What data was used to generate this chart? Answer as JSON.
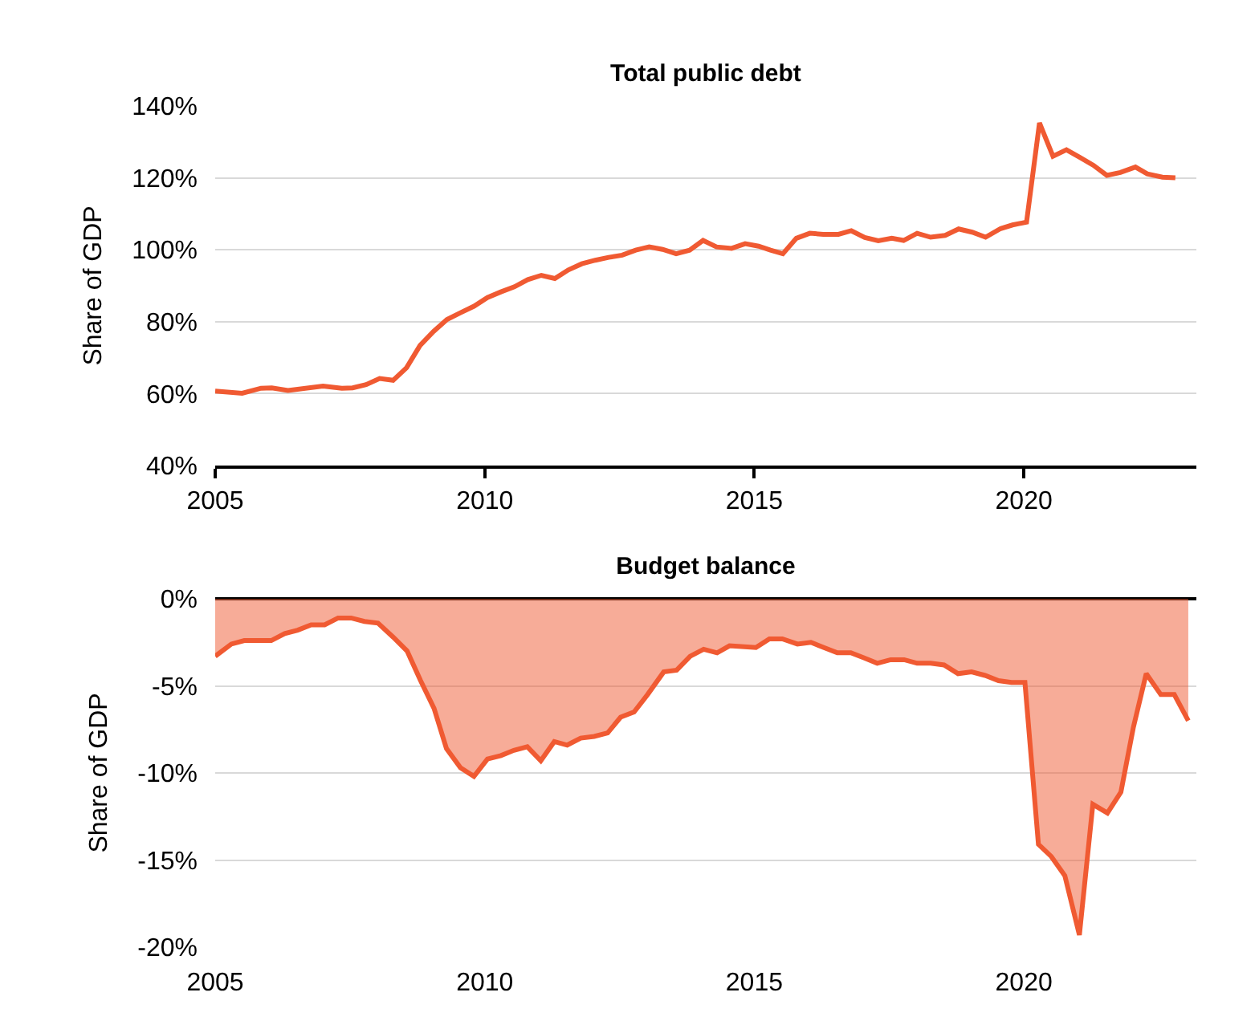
{
  "chart_data": [
    {
      "type": "line",
      "title": "Total public debt",
      "ylabel": "Share of GDP",
      "x": [
        2005.0,
        2005.5,
        2005.85,
        2006.05,
        2006.35,
        2007.0,
        2007.35,
        2007.55,
        2007.8,
        2008.05,
        2008.3,
        2008.55,
        2008.8,
        2009.05,
        2009.3,
        2009.55,
        2009.8,
        2010.05,
        2010.3,
        2010.55,
        2010.8,
        2011.05,
        2011.3,
        2011.55,
        2011.8,
        2012.05,
        2012.3,
        2012.55,
        2012.8,
        2013.05,
        2013.3,
        2013.55,
        2013.8,
        2014.05,
        2014.3,
        2014.58,
        2014.83,
        2015.08,
        2015.3,
        2015.53,
        2015.78,
        2016.03,
        2016.28,
        2016.56,
        2016.8,
        2017.05,
        2017.3,
        2017.55,
        2017.77,
        2018.02,
        2018.27,
        2018.54,
        2018.79,
        2019.04,
        2019.29,
        2019.57,
        2019.79,
        2020.05,
        2020.29,
        2020.54,
        2020.79,
        2021.04,
        2021.29,
        2021.54,
        2021.79,
        2022.07,
        2022.29,
        2022.57,
        2022.81
      ],
      "series": [
        {
          "color": "#f05a32",
          "values": [
            60.7,
            60.1,
            61.5,
            61.6,
            60.9,
            62.1,
            61.5,
            61.6,
            62.5,
            64.2,
            63.7,
            67.2,
            73.4,
            77.3,
            80.6,
            82.5,
            84.3,
            86.7,
            88.3,
            89.7,
            91.7,
            92.9,
            92.0,
            94.4,
            96.1,
            97.1,
            97.9,
            98.5,
            99.9,
            100.8,
            100.1,
            98.9,
            99.9,
            102.6,
            100.8,
            100.4,
            101.7,
            101.0,
            99.9,
            98.9,
            103.2,
            104.6,
            104.3,
            104.3,
            105.3,
            103.4,
            102.5,
            103.2,
            102.6,
            104.6,
            103.5,
            104.0,
            105.8,
            104.9,
            103.5,
            105.9,
            106.9,
            107.7,
            135.3,
            126.0,
            127.8,
            125.7,
            123.5,
            120.7,
            121.5,
            123.0,
            121.1,
            120.2,
            120.0
          ]
        }
      ],
      "xlim": [
        2005,
        2023.2
      ],
      "ylim": [
        40,
        140
      ],
      "xticks": [
        2005,
        2010,
        2015,
        2020
      ],
      "yticks": [
        {
          "value": 40,
          "label": "40%"
        },
        {
          "value": 60,
          "label": "60%"
        },
        {
          "value": 80,
          "label": "80%"
        },
        {
          "value": 100,
          "label": "100%"
        },
        {
          "value": 120,
          "label": "120%"
        },
        {
          "value": 140,
          "label": "140%"
        }
      ],
      "grid": "y"
    },
    {
      "type": "area",
      "title": "Budget balance",
      "ylabel": "Share of GDP",
      "x": [
        2005.0,
        2005.3,
        2005.54,
        2006.04,
        2006.29,
        2006.53,
        2006.78,
        2007.03,
        2007.28,
        2007.52,
        2007.77,
        2008.02,
        2008.3,
        2008.56,
        2008.81,
        2009.06,
        2009.29,
        2009.55,
        2009.8,
        2010.05,
        2010.3,
        2010.54,
        2010.79,
        2011.04,
        2011.29,
        2011.53,
        2011.78,
        2012.03,
        2012.28,
        2012.52,
        2012.77,
        2013.02,
        2013.32,
        2013.56,
        2013.81,
        2014.06,
        2014.31,
        2014.54,
        2015.03,
        2015.28,
        2015.52,
        2015.8,
        2016.05,
        2016.29,
        2016.54,
        2016.79,
        2017.04,
        2017.28,
        2017.53,
        2017.78,
        2018.02,
        2018.27,
        2018.52,
        2018.78,
        2019.03,
        2019.28,
        2019.53,
        2019.77,
        2020.02,
        2020.27,
        2020.51,
        2020.76,
        2021.03,
        2021.28,
        2021.55,
        2021.8,
        2022.03,
        2022.27,
        2022.54,
        2022.79,
        2023.05
      ],
      "series": [
        {
          "color": "#f05a32",
          "values": [
            -3.3,
            -2.6,
            -2.4,
            -2.4,
            -2.0,
            -1.8,
            -1.5,
            -1.5,
            -1.1,
            -1.1,
            -1.3,
            -1.4,
            -2.2,
            -3.0,
            -4.7,
            -6.3,
            -8.6,
            -9.7,
            -10.2,
            -9.2,
            -9.0,
            -8.7,
            -8.5,
            -9.3,
            -8.2,
            -8.4,
            -8.0,
            -7.9,
            -7.7,
            -6.8,
            -6.5,
            -5.5,
            -4.2,
            -4.1,
            -3.3,
            -2.9,
            -3.1,
            -2.7,
            -2.8,
            -2.3,
            -2.3,
            -2.6,
            -2.5,
            -2.8,
            -3.1,
            -3.1,
            -3.4,
            -3.7,
            -3.5,
            -3.5,
            -3.7,
            -3.7,
            -3.8,
            -4.3,
            -4.2,
            -4.4,
            -4.7,
            -4.8,
            -4.8,
            -14.1,
            -14.8,
            -15.9,
            -19.3,
            -11.8,
            -12.3,
            -11.1,
            -7.4,
            -4.3,
            -5.5,
            -5.5,
            -7.0
          ]
        }
      ],
      "xlim": [
        2005,
        2023.2
      ],
      "ylim": [
        -20,
        0
      ],
      "xticks": [
        2005,
        2010,
        2015,
        2020
      ],
      "yticks": [
        {
          "value": -20,
          "label": "-20%"
        },
        {
          "value": -15,
          "label": "-15%"
        },
        {
          "value": -10,
          "label": "-10%"
        },
        {
          "value": -5,
          "label": "-5%"
        },
        {
          "value": 0,
          "label": "0%"
        }
      ],
      "grid": "y"
    }
  ]
}
